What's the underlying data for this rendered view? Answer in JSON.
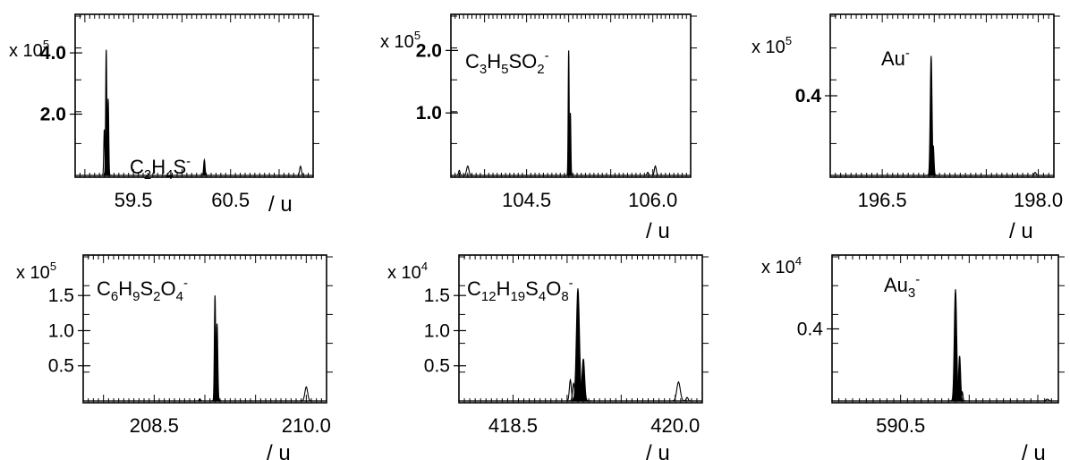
{
  "chart_data": [
    {
      "type": "line",
      "species": "C₂H₄S⁻",
      "species_base": "C",
      "species_parts": [
        [
          "C",
          ""
        ],
        [
          "2",
          "sub"
        ],
        [
          "H",
          ""
        ],
        [
          "4",
          "sub"
        ],
        [
          "S",
          ""
        ],
        [
          "-",
          "sup"
        ]
      ],
      "multiplier": "x 10",
      "multiplier_exp": "5",
      "xlabel": "/ u",
      "xlim": [
        58.9,
        61.35
      ],
      "ylim": [
        0,
        5.2
      ],
      "xticks": [
        59.5,
        60.5
      ],
      "xtick_labels": [
        "59.5",
        "60.5"
      ],
      "yticks": [
        2.0,
        4.0
      ],
      "ytick_labels": [
        "2.0",
        "4.0"
      ],
      "peaks_filled": [
        {
          "center": 59.22,
          "width": 0.012,
          "height": 4.1
        },
        {
          "center": 59.24,
          "width": 0.012,
          "height": 2.5
        },
        {
          "center": 60.23,
          "width": 0.015,
          "height": 0.5
        }
      ],
      "peaks_outline": [
        {
          "center": 59.2,
          "width": 0.012,
          "height": 1.5
        },
        {
          "center": 61.22,
          "width": 0.02,
          "height": 0.3
        }
      ]
    },
    {
      "type": "line",
      "species": "C₃H₅SO₂⁻",
      "species_parts": [
        [
          "C",
          ""
        ],
        [
          "3",
          "sub"
        ],
        [
          "H",
          ""
        ],
        [
          "5",
          "sub"
        ],
        [
          "SO",
          ""
        ],
        [
          "2",
          "sub"
        ],
        [
          "-",
          "sup"
        ]
      ],
      "multiplier": "x 10",
      "multiplier_exp": "5",
      "xlabel": "/ u",
      "xlim": [
        103.6,
        106.45
      ],
      "ylim": [
        0,
        2.55
      ],
      "xticks": [
        104.5,
        106.0
      ],
      "xtick_labels": [
        "104.5",
        "106.0"
      ],
      "yticks": [
        1.0,
        2.0
      ],
      "ytick_labels": [
        "1.0",
        "2.0"
      ],
      "peaks_filled": [
        {
          "center": 105.0,
          "width": 0.012,
          "height": 2.0
        },
        {
          "center": 105.02,
          "width": 0.012,
          "height": 1.0
        }
      ],
      "peaks_outline": [
        {
          "center": 103.8,
          "width": 0.03,
          "height": 0.15
        },
        {
          "center": 103.7,
          "width": 0.02,
          "height": 0.08
        },
        {
          "center": 105.94,
          "width": 0.02,
          "height": 0.05
        },
        {
          "center": 106.03,
          "width": 0.025,
          "height": 0.15
        }
      ]
    },
    {
      "type": "line",
      "species": "Au⁻",
      "species_parts": [
        [
          "Au",
          ""
        ],
        [
          "-",
          "sup"
        ]
      ],
      "multiplier": "x 10",
      "multiplier_exp": "5",
      "xlabel": "/ u",
      "xlim": [
        196.0,
        198.15
      ],
      "ylim": [
        0,
        0.8
      ],
      "xticks": [
        196.5,
        198.0
      ],
      "xtick_labels": [
        "196.5",
        "198.0"
      ],
      "yticks": [
        0.4
      ],
      "ytick_labels": [
        "0.4"
      ],
      "peaks_filled": [
        {
          "center": 196.97,
          "width": 0.018,
          "height": 0.6
        },
        {
          "center": 196.99,
          "width": 0.015,
          "height": 0.15
        }
      ],
      "peaks_outline": [
        {
          "center": 197.97,
          "width": 0.02,
          "height": 0.015
        }
      ]
    },
    {
      "type": "line",
      "species": "C₆H₉S₂O₄⁻",
      "species_parts": [
        [
          "C",
          ""
        ],
        [
          "6",
          "sub"
        ],
        [
          "H",
          ""
        ],
        [
          "9",
          "sub"
        ],
        [
          "S",
          ""
        ],
        [
          "2",
          "sub"
        ],
        [
          "O",
          ""
        ],
        [
          "4",
          "sub"
        ],
        [
          "-",
          "sup"
        ]
      ],
      "multiplier": "x 10",
      "multiplier_exp": "5",
      "xlabel": "/ u",
      "xlim": [
        207.8,
        210.2
      ],
      "ylim": [
        0,
        2.05
      ],
      "xticks": [
        208.5,
        210.0
      ],
      "xtick_labels": [
        "208.5",
        "210.0"
      ],
      "yticks": [
        0.5,
        1.0,
        1.5
      ],
      "ytick_labels": [
        "0.5",
        "1.0",
        "1.5"
      ],
      "peaks_filled": [
        {
          "center": 209.1,
          "width": 0.013,
          "height": 1.5
        },
        {
          "center": 209.12,
          "width": 0.015,
          "height": 1.1
        }
      ],
      "peaks_outline": [
        {
          "center": 208.95,
          "width": 0.015,
          "height": 0.03
        },
        {
          "center": 210.0,
          "width": 0.03,
          "height": 0.2
        }
      ]
    },
    {
      "type": "line",
      "species": "C₁₂H₁₉S₄O₈⁻",
      "species_parts": [
        [
          "C",
          ""
        ],
        [
          "12",
          "sub"
        ],
        [
          "H",
          ""
        ],
        [
          "19",
          "sub"
        ],
        [
          "S",
          ""
        ],
        [
          "4",
          "sub"
        ],
        [
          "O",
          ""
        ],
        [
          "8",
          "sub"
        ],
        [
          "-",
          "sup"
        ]
      ],
      "multiplier": "x 10",
      "multiplier_exp": "4",
      "xlabel": "/ u",
      "xlim": [
        418.0,
        420.25
      ],
      "ylim": [
        0,
        2.05
      ],
      "xticks": [
        418.5,
        420.0
      ],
      "xtick_labels": [
        "418.5",
        "420.0"
      ],
      "yticks": [
        0.5,
        1.0,
        1.5
      ],
      "ytick_labels": [
        "0.5",
        "1.0",
        "1.5"
      ],
      "peaks_filled": [
        {
          "center": 419.1,
          "width": 0.03,
          "height": 1.6
        },
        {
          "center": 419.15,
          "width": 0.025,
          "height": 0.6
        }
      ],
      "peaks_outline": [
        {
          "center": 419.03,
          "width": 0.02,
          "height": 0.3
        },
        {
          "center": 419.06,
          "width": 0.02,
          "height": 0.25
        },
        {
          "center": 420.03,
          "width": 0.035,
          "height": 0.27
        },
        {
          "center": 420.11,
          "width": 0.02,
          "height": 0.05
        }
      ]
    },
    {
      "type": "line",
      "species": "Au₃⁻",
      "species_parts": [
        [
          "Au",
          ""
        ],
        [
          "3",
          "sub"
        ],
        [
          "-",
          "sup"
        ]
      ],
      "multiplier": "x 10",
      "multiplier_exp": "4",
      "xlabel": "/ u",
      "xlim": [
        590.0,
        591.65
      ],
      "ylim": [
        0,
        0.8
      ],
      "xticks": [
        590.5
      ],
      "xtick_labels": [
        "590.5"
      ],
      "yticks": [
        0.4
      ],
      "ytick_labels": [
        "0.4"
      ],
      "peaks_filled": [
        {
          "center": 590.9,
          "width": 0.018,
          "height": 0.62
        },
        {
          "center": 590.93,
          "width": 0.015,
          "height": 0.25
        }
      ],
      "peaks_outline": [
        {
          "center": 590.95,
          "width": 0.01,
          "height": 0.05
        },
        {
          "center": 591.57,
          "width": 0.02,
          "height": 0.01
        }
      ]
    }
  ]
}
